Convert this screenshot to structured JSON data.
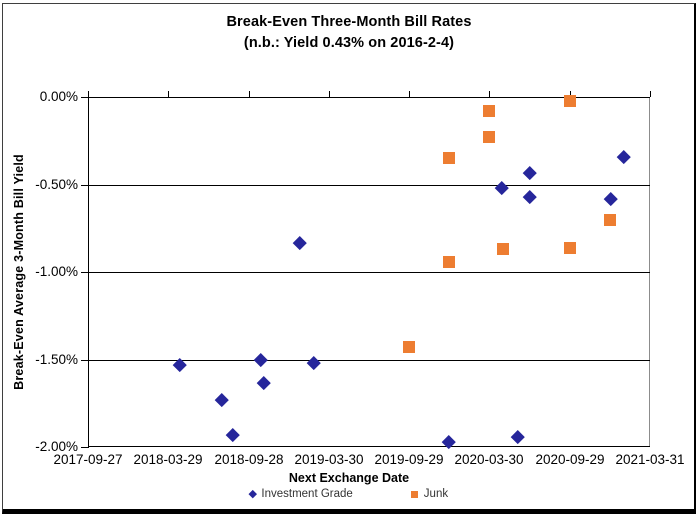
{
  "title": {
    "line1": "Break-Even Three-Month Bill Rates",
    "line2": "(n.b.: Yield 0.43% on 2016-2-4)"
  },
  "colors": {
    "investment_grade": "#26269B",
    "junk": "#ED7D31",
    "grid": "#000000",
    "plot_border": "#8C8C8C",
    "legend_text": "#333333"
  },
  "chart_data": {
    "type": "scatter",
    "title": "Break-Even Three-Month Bill Rates (n.b.: Yield 0.43% on 2016-2-4)",
    "xlabel": "Next Exchange Date",
    "ylabel": "Break-Even Average 3-Month Bill Yield",
    "xlim": [
      "2017-09-27",
      "2021-03-31"
    ],
    "ylim": [
      -2.0,
      0.0
    ],
    "x_ticks": [
      "2017-09-27",
      "2018-03-29",
      "2018-09-28",
      "2019-03-30",
      "2019-09-29",
      "2020-03-30",
      "2020-09-29",
      "2021-03-31"
    ],
    "y_ticks": [
      "0.00%",
      "-0.50%",
      "-1.00%",
      "-1.50%",
      "-2.00%"
    ],
    "grid": "horizontal",
    "legend_position": "bottom",
    "series": [
      {
        "name": "Investment Grade",
        "marker": "diamond",
        "color": "#26269B",
        "points": [
          {
            "x": "2018-04-25",
            "y": -1.53
          },
          {
            "x": "2018-07-29",
            "y": -1.73
          },
          {
            "x": "2018-08-23",
            "y": -1.93
          },
          {
            "x": "2018-10-26",
            "y": -1.5
          },
          {
            "x": "2018-11-02",
            "y": -1.63
          },
          {
            "x": "2019-01-23",
            "y": -0.83
          },
          {
            "x": "2019-02-24",
            "y": -1.52
          },
          {
            "x": "2019-12-29",
            "y": -1.97
          },
          {
            "x": "2020-04-28",
            "y": -0.52
          },
          {
            "x": "2020-06-03",
            "y": -1.94
          },
          {
            "x": "2020-06-30",
            "y": -0.43
          },
          {
            "x": "2020-06-30",
            "y": -0.57
          },
          {
            "x": "2021-01-01",
            "y": -0.58
          },
          {
            "x": "2021-01-31",
            "y": -0.34
          }
        ]
      },
      {
        "name": "Junk",
        "marker": "square",
        "color": "#ED7D31",
        "points": [
          {
            "x": "2019-09-29",
            "y": -1.43
          },
          {
            "x": "2019-12-29",
            "y": -0.35
          },
          {
            "x": "2019-12-29",
            "y": -0.94
          },
          {
            "x": "2020-03-29",
            "y": -0.08
          },
          {
            "x": "2020-03-29",
            "y": -0.23
          },
          {
            "x": "2020-04-30",
            "y": -0.87
          },
          {
            "x": "2020-09-29",
            "y": -0.02
          },
          {
            "x": "2020-09-29",
            "y": -0.86
          },
          {
            "x": "2020-12-30",
            "y": -0.7
          }
        ]
      }
    ]
  }
}
